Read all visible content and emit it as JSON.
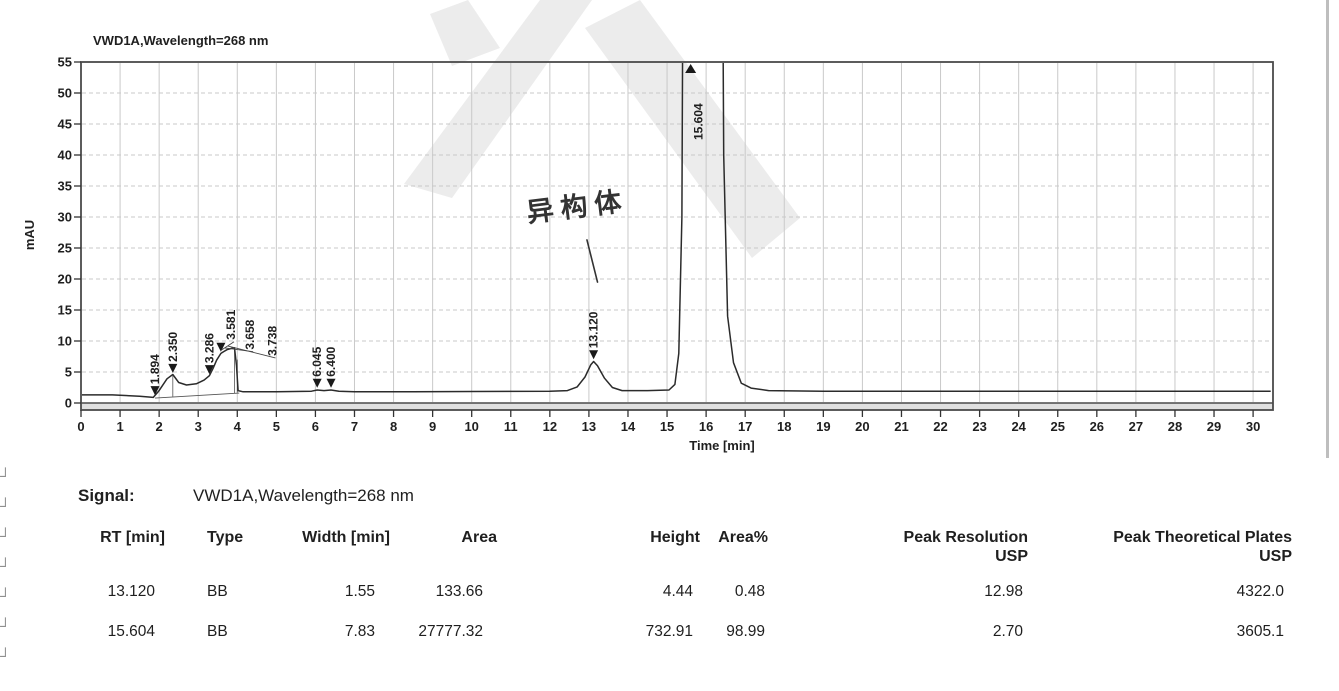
{
  "colors": {
    "ink": "#1f1f1f",
    "grid": "#c9c9c9",
    "frame": "#4a4a4a",
    "trace": "#2b2b2b",
    "scan_edge": "#b3b3b3",
    "watermark": "#ececec"
  },
  "chart_data": {
    "type": "line",
    "title": "VWD1A,Wavelength=268 nm",
    "xlabel": "Time [min]",
    "ylabel": "mAU",
    "xlim": [
      0,
      30.5
    ],
    "ylim": [
      0,
      55
    ],
    "grid": true,
    "x_ticks": [
      0,
      1,
      2,
      3,
      4,
      5,
      6,
      7,
      8,
      9,
      10,
      11,
      12,
      13,
      14,
      15,
      16,
      17,
      18,
      19,
      20,
      21,
      22,
      23,
      24,
      25,
      26,
      27,
      28,
      29,
      30
    ],
    "y_ticks": [
      0,
      5,
      10,
      15,
      20,
      25,
      30,
      35,
      40,
      45,
      50,
      55
    ],
    "trace": [
      [
        0,
        1.3
      ],
      [
        0.8,
        1.3
      ],
      [
        1.5,
        1.1
      ],
      [
        1.85,
        0.9
      ],
      [
        2.0,
        2.0
      ],
      [
        2.2,
        3.9
      ],
      [
        2.35,
        4.6
      ],
      [
        2.5,
        3.3
      ],
      [
        2.7,
        2.9
      ],
      [
        2.95,
        3.1
      ],
      [
        3.15,
        3.7
      ],
      [
        3.286,
        4.4
      ],
      [
        3.38,
        5.6
      ],
      [
        3.47,
        6.9
      ],
      [
        3.581,
        8.0
      ],
      [
        3.658,
        8.3
      ],
      [
        3.738,
        8.6
      ],
      [
        3.85,
        8.8
      ],
      [
        3.93,
        8.9
      ],
      [
        3.98,
        6.0
      ],
      [
        4.02,
        2.0
      ],
      [
        4.15,
        1.8
      ],
      [
        5.0,
        1.8
      ],
      [
        5.9,
        1.9
      ],
      [
        6.045,
        2.1
      ],
      [
        6.22,
        2.0
      ],
      [
        6.4,
        2.1
      ],
      [
        6.6,
        1.9
      ],
      [
        7.0,
        1.8
      ],
      [
        8.5,
        1.8
      ],
      [
        10,
        1.85
      ],
      [
        12.0,
        1.9
      ],
      [
        12.45,
        2.0
      ],
      [
        12.7,
        2.6
      ],
      [
        12.9,
        4.2
      ],
      [
        13.05,
        6.2
      ],
      [
        13.12,
        6.7
      ],
      [
        13.22,
        6.0
      ],
      [
        13.4,
        4.0
      ],
      [
        13.6,
        2.5
      ],
      [
        13.85,
        2.0
      ],
      [
        14.5,
        2.0
      ],
      [
        15.05,
        2.1
      ],
      [
        15.2,
        3.0
      ],
      [
        15.3,
        8.0
      ],
      [
        15.38,
        30
      ],
      [
        15.44,
        120
      ],
      [
        15.5,
        400
      ],
      [
        16.3,
        400
      ],
      [
        16.38,
        120
      ],
      [
        16.45,
        40
      ],
      [
        16.55,
        14
      ],
      [
        16.7,
        6.5
      ],
      [
        16.9,
        3.2
      ],
      [
        17.15,
        2.4
      ],
      [
        17.6,
        2.0
      ],
      [
        19,
        1.9
      ],
      [
        22,
        1.9
      ],
      [
        26,
        1.9
      ],
      [
        30.45,
        1.9
      ]
    ],
    "peaks": [
      {
        "label": "1.894",
        "t": 1.894,
        "apex": 1.1,
        "marker": "down"
      },
      {
        "label": "2.350",
        "t": 2.35,
        "apex": 4.7,
        "marker": "down"
      },
      {
        "label": "3.286",
        "t": 3.286,
        "apex": 4.5,
        "marker": "down"
      },
      {
        "label": "3.581",
        "t": 3.581,
        "apex": 8.1,
        "marker": "down",
        "label_t": 3.84,
        "label_mau": 10.2,
        "leader": true
      },
      {
        "label": "3.658",
        "t": 3.658,
        "apex": 8.4,
        "label_t": 4.33,
        "label_mau": 8.6,
        "leader": true
      },
      {
        "label": "3.738",
        "t": 3.738,
        "apex": 8.7,
        "label_t": 4.9,
        "label_mau": 7.6,
        "leader": true
      },
      {
        "label": "6.045",
        "t": 6.045,
        "apex": 2.3,
        "marker": "down"
      },
      {
        "label": "6.400",
        "t": 6.4,
        "apex": 2.3,
        "marker": "down"
      },
      {
        "label": "13.120",
        "t": 13.12,
        "apex": 6.9,
        "marker": "down"
      },
      {
        "label": "15.604",
        "t": 15.604,
        "apex": 55,
        "marker": "up"
      }
    ],
    "annotation": {
      "text": "异构体",
      "line_from_t": 12.95,
      "line_from_mau": 26.3,
      "line_to_t": 13.22,
      "line_to_mau": 19.5
    }
  },
  "table": {
    "signal_label": "Signal:",
    "signal_value": "VWD1A,Wavelength=268 nm",
    "columns": [
      [
        "RT [min]"
      ],
      [
        "Type"
      ],
      [
        "Width [min]"
      ],
      [
        "Area"
      ],
      [
        "Height"
      ],
      [
        "Area%"
      ],
      [
        "Peak Resolution",
        "USP"
      ],
      [
        "Peak Theoretical Plates",
        "USP"
      ]
    ],
    "rows": [
      [
        "13.120",
        "BB",
        "1.55",
        "133.66",
        "4.44",
        "0.48",
        "12.98",
        "4322.0"
      ],
      [
        "15.604",
        "BB",
        "7.83",
        "27777.32",
        "732.91",
        "98.99",
        "2.70",
        "3605.1"
      ]
    ]
  },
  "decor": {
    "margin_marks": [
      "┘",
      "┘",
      "┘",
      "┘",
      "┘",
      "┘",
      "┘"
    ]
  }
}
